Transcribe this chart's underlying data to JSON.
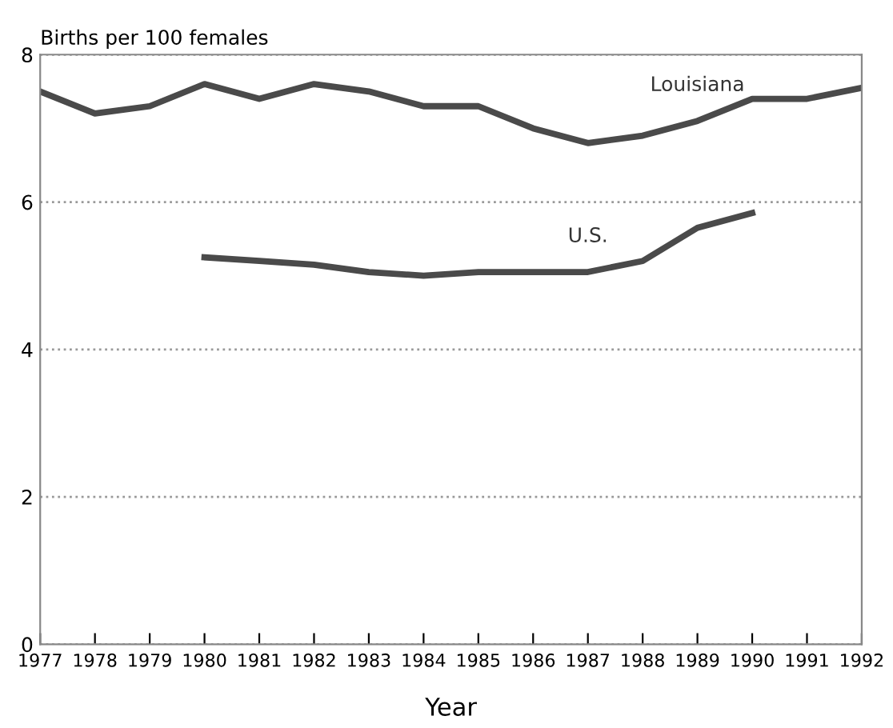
{
  "chart_data": {
    "type": "line",
    "ylabel": "Births per 100 females",
    "xlabel": "Year",
    "x": [
      1977,
      1978,
      1979,
      1980,
      1981,
      1982,
      1983,
      1984,
      1985,
      1986,
      1987,
      1988,
      1989,
      1990,
      1991,
      1992
    ],
    "series": [
      {
        "name": "Louisiana",
        "color": "#4a4a4a",
        "values": [
          7.5,
          7.2,
          7.3,
          7.6,
          7.4,
          7.6,
          7.5,
          7.3,
          7.3,
          7.0,
          6.8,
          6.9,
          7.1,
          7.4,
          7.4,
          7.55
        ]
      },
      {
        "name": "U.S.",
        "color": "#4a4a4a",
        "values": [
          null,
          null,
          null,
          5.25,
          5.2,
          5.15,
          5.05,
          5.0,
          5.05,
          5.05,
          5.05,
          5.2,
          5.65,
          5.85,
          null,
          null
        ]
      }
    ],
    "xlim": [
      1977,
      1992
    ],
    "xticks": [
      1977,
      1978,
      1979,
      1980,
      1981,
      1982,
      1983,
      1984,
      1985,
      1986,
      1987,
      1988,
      1989,
      1990,
      1991,
      1992
    ],
    "ylim": [
      0,
      8
    ],
    "yticks": [
      0,
      2,
      4,
      6,
      8
    ],
    "grid": "y",
    "legend": false,
    "marker": "none",
    "line_style": "solid"
  }
}
